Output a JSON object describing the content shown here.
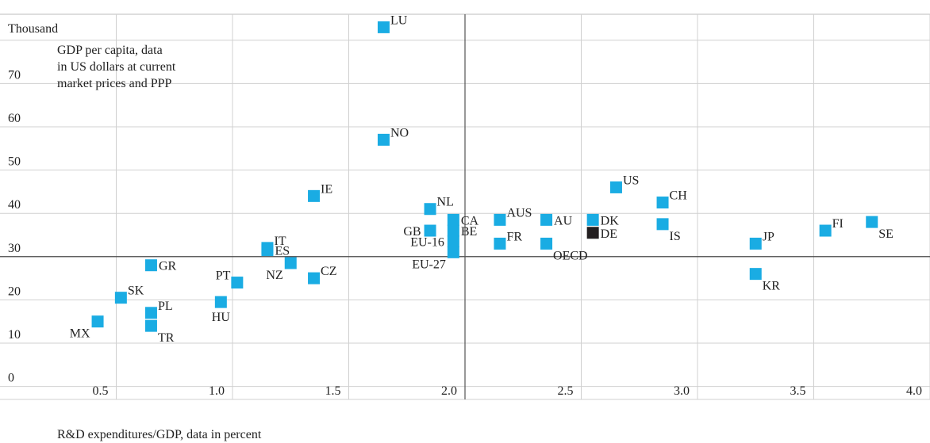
{
  "chart_data": {
    "type": "scatter",
    "title": "",
    "y_unit_label": "Thousand",
    "ylabel": "GDP per capita, data\nin US dollars at current\nmarket prices and PPP",
    "xlabel": "R&D expenditures/GDP, data in percent",
    "xlim": [
      0,
      4.0
    ],
    "ylim": [
      -3,
      86
    ],
    "x_ticks": [
      0.5,
      1.0,
      1.5,
      2.0,
      2.5,
      3.0,
      3.5,
      4.0
    ],
    "x_tick_labels": [
      "0.5",
      "1.0",
      "1.5",
      "2.0",
      "2.5",
      "3.0",
      "3.5",
      "4.0"
    ],
    "y_ticks": [
      0,
      10,
      20,
      30,
      40,
      50,
      60,
      70
    ],
    "y_tick_labels": [
      "0",
      "10",
      "20",
      "30",
      "40",
      "50",
      "60",
      "70"
    ],
    "reference_lines": {
      "x": 2.0,
      "y": 30
    },
    "grid": true,
    "colors": {
      "default": "#1aace3",
      "highlight": "#231f20"
    },
    "points": [
      {
        "label": "LU",
        "x": 1.65,
        "y": 83,
        "label_pos": "above-right"
      },
      {
        "label": "NO",
        "x": 1.65,
        "y": 57,
        "label_pos": "above-right"
      },
      {
        "label": "IE",
        "x": 1.35,
        "y": 44,
        "label_pos": "above-right"
      },
      {
        "label": "NL",
        "x": 1.85,
        "y": 41,
        "label_pos": "above-right"
      },
      {
        "label": "GB",
        "x": 1.85,
        "y": 36,
        "label_pos": "left"
      },
      {
        "label": "CA",
        "x": 1.95,
        "y": 38.5,
        "label_pos": "right"
      },
      {
        "label": "BE",
        "x": 1.95,
        "y": 36,
        "label_pos": "right"
      },
      {
        "label": "EU-16",
        "x": 1.95,
        "y": 33.5,
        "label_pos": "left"
      },
      {
        "label": "EU-27",
        "x": 1.95,
        "y": 31,
        "label_pos": "below-left"
      },
      {
        "label": "AUS",
        "x": 2.15,
        "y": 38.5,
        "label_pos": "above-right"
      },
      {
        "label": "FR",
        "x": 2.15,
        "y": 33,
        "label_pos": "above-right"
      },
      {
        "label": "AU",
        "x": 2.35,
        "y": 38.5,
        "label_pos": "right"
      },
      {
        "label": "OECD",
        "x": 2.35,
        "y": 33,
        "label_pos": "below-right"
      },
      {
        "label": "DK",
        "x": 2.55,
        "y": 38.5,
        "label_pos": "right"
      },
      {
        "label": "DE",
        "x": 2.55,
        "y": 35.5,
        "label_pos": "right",
        "highlight": true
      },
      {
        "label": "US",
        "x": 2.65,
        "y": 46,
        "label_pos": "above-right"
      },
      {
        "label": "CH",
        "x": 2.85,
        "y": 42.5,
        "label_pos": "above-right"
      },
      {
        "label": "IS",
        "x": 2.85,
        "y": 37.5,
        "label_pos": "below-right"
      },
      {
        "label": "JP",
        "x": 3.25,
        "y": 33,
        "label_pos": "above-right"
      },
      {
        "label": "KR",
        "x": 3.25,
        "y": 26,
        "label_pos": "below-right"
      },
      {
        "label": "FI",
        "x": 3.55,
        "y": 36,
        "label_pos": "above-right"
      },
      {
        "label": "SE",
        "x": 3.75,
        "y": 38,
        "label_pos": "below-right"
      },
      {
        "label": "IT",
        "x": 1.15,
        "y": 32,
        "label_pos": "above-right"
      },
      {
        "label": "ES",
        "x": 1.15,
        "y": 31.5,
        "label_pos": "right"
      },
      {
        "label": "NZ",
        "x": 1.25,
        "y": 28.5,
        "label_pos": "below-left"
      },
      {
        "label": "CZ",
        "x": 1.35,
        "y": 25,
        "label_pos": "above-right"
      },
      {
        "label": "PT",
        "x": 1.02,
        "y": 24,
        "label_pos": "above-left"
      },
      {
        "label": "HU",
        "x": 0.95,
        "y": 19.5,
        "label_pos": "below"
      },
      {
        "label": "GR",
        "x": 0.65,
        "y": 28,
        "label_pos": "right"
      },
      {
        "label": "SK",
        "x": 0.52,
        "y": 20.5,
        "label_pos": "above-right"
      },
      {
        "label": "PL",
        "x": 0.65,
        "y": 17,
        "label_pos": "above-right"
      },
      {
        "label": "TR",
        "x": 0.65,
        "y": 14,
        "label_pos": "below-right"
      },
      {
        "label": "MX",
        "x": 0.42,
        "y": 15,
        "label_pos": "below-left"
      }
    ]
  }
}
